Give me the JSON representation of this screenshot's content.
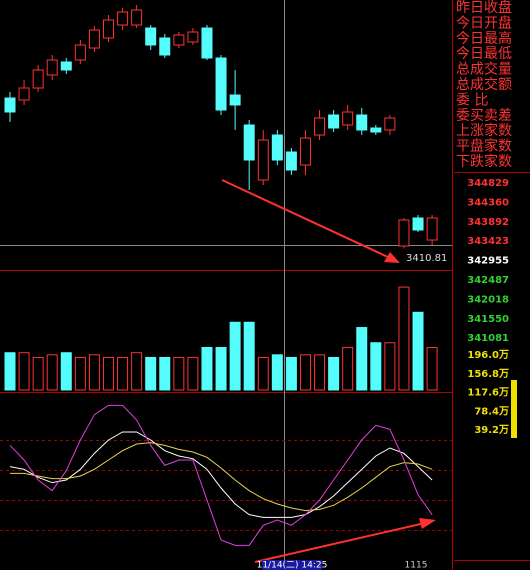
{
  "chart_data": [
    {
      "type": "candlestick",
      "annotation": "3410.81",
      "ylim": [
        3400,
        3535
      ],
      "up_color": "#ff3232",
      "down_color": "#54fcfc",
      "open": [
        3486,
        3485,
        3491,
        3497.5,
        3504,
        3505,
        3511,
        3516,
        3522.5,
        3522.5,
        3521,
        3516,
        3512.5,
        3514,
        3521,
        3506,
        3487.5,
        3472.5,
        3445,
        3467.5,
        3459,
        3452.5,
        3467.5,
        3477.5,
        3472.5,
        3477.5,
        3471,
        3470,
        3412,
        3426,
        3415
      ],
      "high": [
        3489,
        3495,
        3502.5,
        3507.5,
        3506,
        3515,
        3522,
        3527.5,
        3531,
        3532.5,
        3522.5,
        3518,
        3519,
        3521,
        3522.5,
        3507.5,
        3500,
        3475,
        3470,
        3470,
        3461,
        3470,
        3480,
        3480,
        3482.5,
        3481,
        3472.5,
        3477.5,
        3426,
        3427.5,
        3427.5
      ],
      "low": [
        3474,
        3482.5,
        3489,
        3495,
        3498,
        3503,
        3509,
        3514,
        3520,
        3521,
        3510,
        3506,
        3511,
        3512.5,
        3505,
        3477.5,
        3470,
        3440,
        3442.5,
        3452.5,
        3447.5,
        3447.5,
        3465,
        3469,
        3470,
        3467.5,
        3467.5,
        3467.5,
        3410.81,
        3419,
        3412.5
      ],
      "close": [
        3479,
        3491,
        3500,
        3505,
        3500,
        3512.5,
        3520,
        3525,
        3529,
        3530,
        3512.5,
        3507.5,
        3517.5,
        3519,
        3506,
        3480,
        3482.5,
        3455,
        3465,
        3455,
        3450,
        3466,
        3476,
        3471,
        3479,
        3470,
        3469,
        3476,
        3425,
        3420,
        3426
      ]
    },
    {
      "type": "bar",
      "ylim": [
        0,
        200
      ],
      "values": [
        71,
        71,
        62,
        67,
        71,
        62,
        67,
        62,
        62,
        71,
        62,
        62,
        62,
        62,
        81,
        81,
        129,
        129,
        62,
        67,
        62,
        67,
        67,
        62,
        81,
        119,
        90,
        90,
        196,
        148,
        81
      ]
    },
    {
      "type": "line",
      "ylim": [
        -10,
        110
      ],
      "series": [
        {
          "color": "#ffffff",
          "values": [
            60,
            58,
            52,
            48,
            50,
            58,
            70,
            80,
            86,
            86,
            80,
            72,
            68,
            66,
            58,
            44,
            32,
            24,
            22,
            22,
            22,
            24,
            30,
            38,
            48,
            58,
            68,
            74,
            70,
            60,
            50
          ]
        },
        {
          "color": "#e8d44a",
          "values": [
            55,
            55,
            53,
            51,
            51,
            53,
            58,
            65,
            72,
            77,
            78,
            76,
            73,
            71,
            67,
            59,
            50,
            42,
            36,
            32,
            29,
            27,
            28,
            31,
            37,
            44,
            52,
            60,
            63,
            62,
            58
          ]
        },
        {
          "color": "#e040e0",
          "values": [
            76,
            65,
            50,
            42,
            57,
            80,
            99,
            106,
            106,
            95,
            76,
            61,
            65,
            65,
            35,
            5,
            1,
            1,
            16,
            20,
            16,
            24,
            35,
            50,
            65,
            80,
            91,
            88,
            65,
            39,
            24
          ]
        }
      ]
    }
  ],
  "cursor_label": "11/14(二) 14:25",
  "date_label": "1115",
  "side_panel": {
    "labels": [
      "昨日收盘",
      "今日开盘",
      "今日最高",
      "今日最低",
      "总成交量",
      "总成交额",
      "委    比",
      "委买卖差",
      "上涨家数",
      "平盘家数",
      "下跌家数"
    ],
    "price_labels": [
      {
        "text": "344829",
        "color": "#ff3232"
      },
      {
        "text": "344360",
        "color": "#ff3232"
      },
      {
        "text": "343892",
        "color": "#ff3232"
      },
      {
        "text": "343423",
        "color": "#ff3232"
      },
      {
        "text": "342955",
        "color": "#ffffff"
      },
      {
        "text": "342487",
        "color": "#32d232"
      },
      {
        "text": "342018",
        "color": "#32d232"
      },
      {
        "text": "341550",
        "color": "#32d232"
      },
      {
        "text": "341081",
        "color": "#32d232"
      }
    ],
    "volume_labels": [
      "196.0万",
      "156.8万",
      "117.6万",
      "78.4万",
      "39.2万"
    ]
  }
}
